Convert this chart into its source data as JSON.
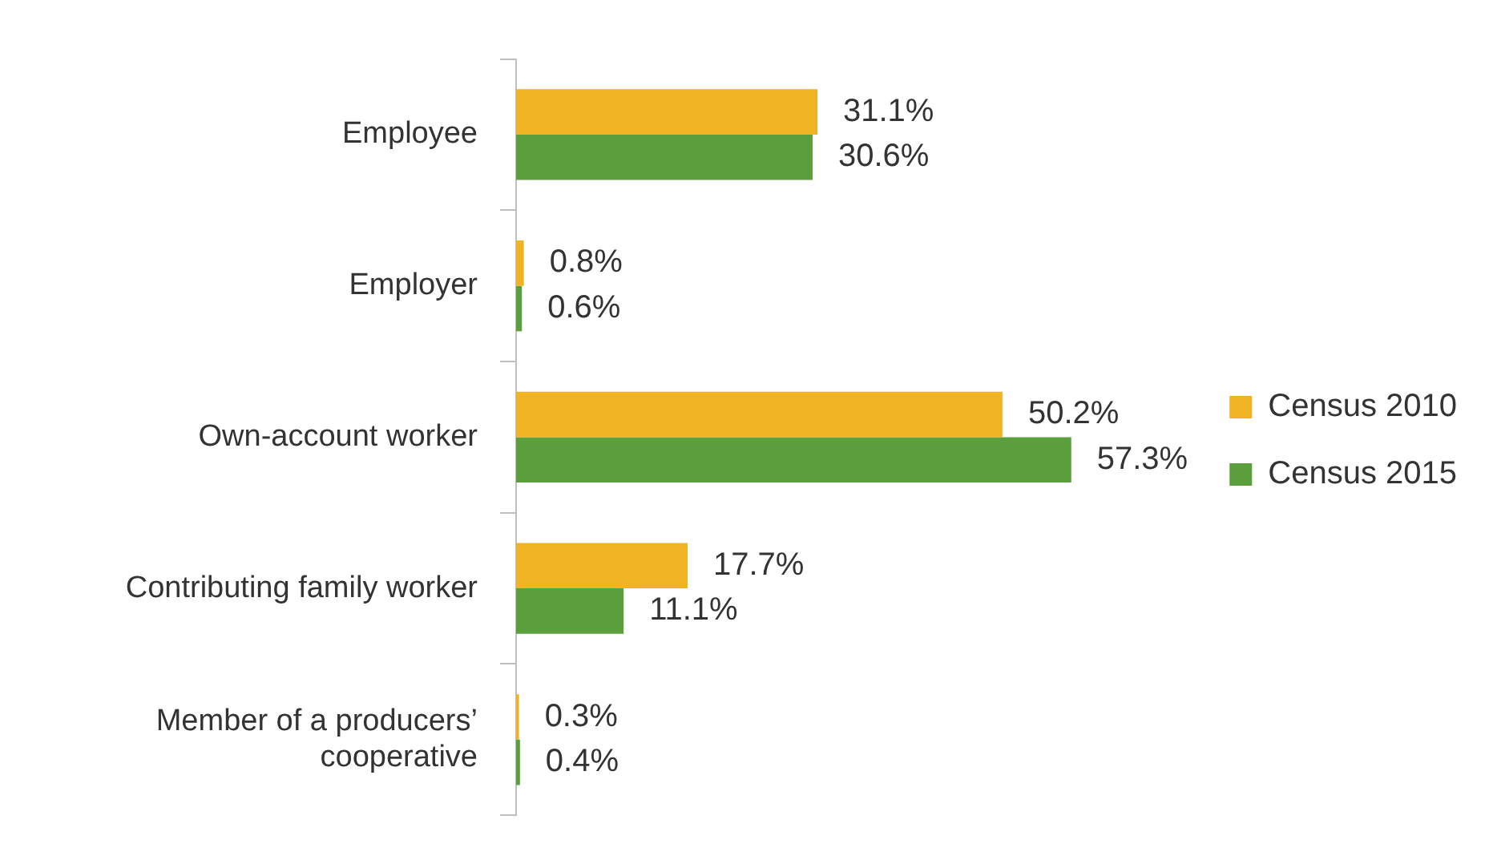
{
  "chart_data": {
    "type": "bar",
    "orientation": "horizontal",
    "tick_labels": "y",
    "categories": [
      "Employee",
      "Employer",
      "Own-account worker",
      "Contributing family worker",
      "Member of a producers’ cooperative"
    ],
    "series": [
      {
        "name": "Census 2010",
        "color": "#f0b323",
        "values": [
          31.1,
          0.8,
          50.2,
          17.7,
          0.3
        ],
        "value_labels": [
          "31.1%",
          "0.8%",
          "50.2%",
          "17.7%",
          "0.3%"
        ]
      },
      {
        "name": "Census 2015",
        "color": "#5b9e3c",
        "values": [
          30.6,
          0.6,
          57.3,
          11.1,
          0.4
        ],
        "value_labels": [
          "30.6%",
          "0.6%",
          "57.3%",
          "11.1%",
          "0.4%"
        ]
      }
    ],
    "legend": "right"
  }
}
